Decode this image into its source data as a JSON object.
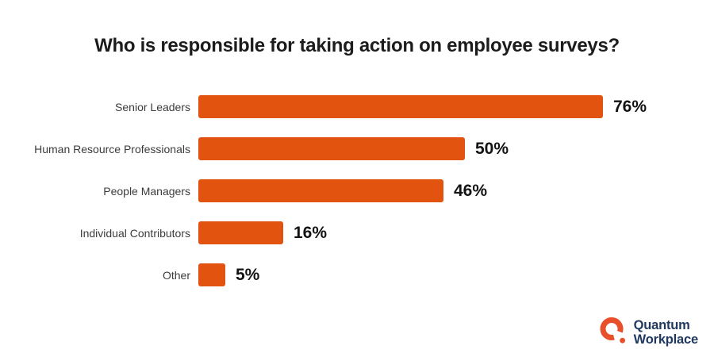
{
  "title": "Who is responsible for taking action on employee surveys?",
  "chart_data": {
    "type": "bar",
    "orientation": "horizontal",
    "title": "Who is responsible for taking action on employee surveys?",
    "categories": [
      "Senior Leaders",
      "Human Resource Professionals",
      "People Managers",
      "Individual Contributors",
      "Other"
    ],
    "values": [
      76,
      50,
      46,
      16,
      5
    ],
    "value_labels": [
      "76%",
      "50%",
      "46%",
      "16%",
      "5%"
    ],
    "unit": "percent",
    "xlabel": "",
    "ylabel": "",
    "xlim": [
      0,
      100
    ],
    "grid": false,
    "legend": false,
    "bar_color": "#E25310",
    "value_label_color": "#131313",
    "category_label_color": "#3C3C3C"
  },
  "logo": {
    "name": "Quantum Workplace",
    "line1": "Quantum",
    "line2": "Workplace",
    "mark_color": "#E8502B",
    "text_color": "#21395F"
  }
}
